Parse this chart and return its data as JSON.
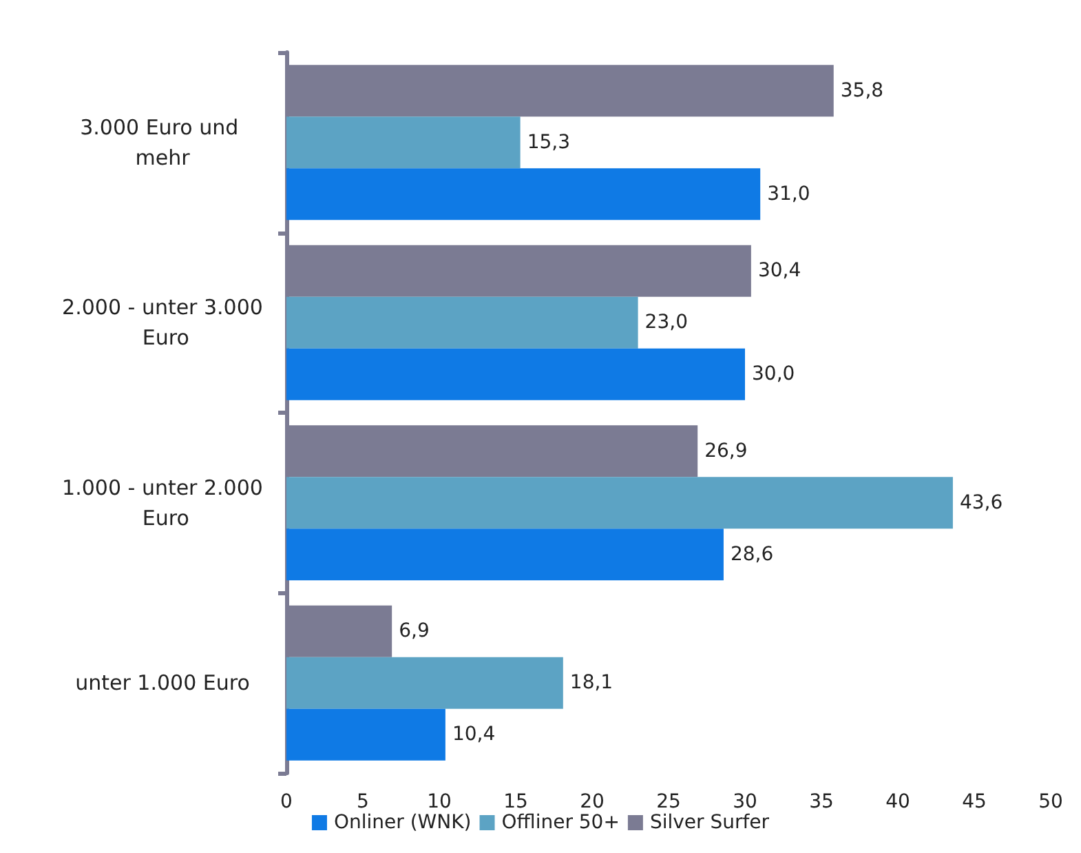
{
  "chart_data": {
    "type": "bar",
    "orientation": "horizontal",
    "categories": [
      "3.000 Euro und mehr",
      "2.000 - unter 3.000 Euro",
      "1.000 - unter 2.000 Euro",
      "unter 1.000 Euro"
    ],
    "series": [
      {
        "name": "Onliner (WNK)",
        "color": "#0f7ae5",
        "values": [
          31.0,
          30.0,
          28.6,
          10.4
        ],
        "value_labels": [
          "31,0",
          "30,0",
          "28,6",
          "10,4"
        ]
      },
      {
        "name": "Offliner 50+",
        "color": "#5ca3c4",
        "values": [
          15.3,
          23.0,
          43.6,
          18.1
        ],
        "value_labels": [
          "15,3",
          "23,0",
          "43,6",
          "18,1"
        ]
      },
      {
        "name": "Silver Surfer",
        "color": "#7b7b93",
        "values": [
          35.8,
          30.4,
          26.9,
          6.9
        ],
        "value_labels": [
          "35,8",
          "30,4",
          "26,9",
          "6,9"
        ]
      }
    ],
    "xlim": [
      0,
      50
    ],
    "xticks": [
      0,
      5,
      10,
      15,
      20,
      25,
      30,
      35,
      40,
      45,
      50
    ],
    "grid": false,
    "legend": "bottom"
  }
}
